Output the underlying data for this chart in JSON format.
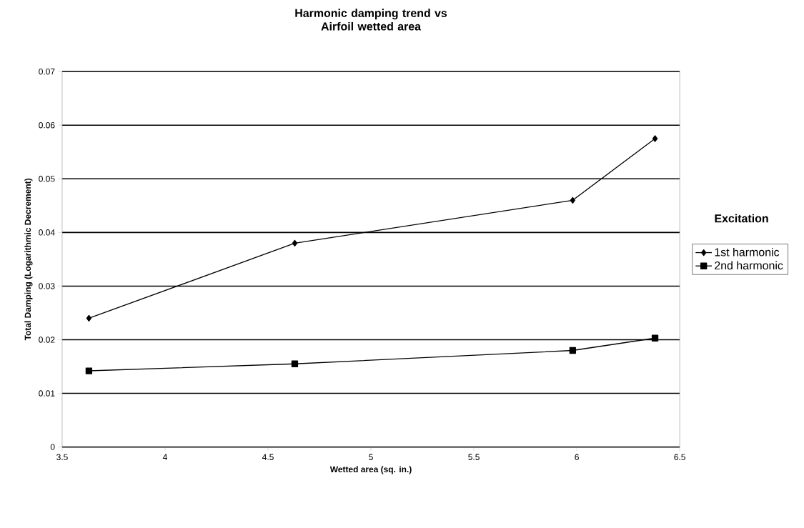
{
  "chart_data": {
    "type": "line",
    "title": "Harmonic damping trend vs\nAirfoil wetted area",
    "xlabel": "Wetted area (sq. in.)",
    "ylabel": "Total Damping (Logarithmic Decrement)",
    "legend_title": "Excitation",
    "x": [
      3.63,
      4.63,
      5.98,
      6.38
    ],
    "series": [
      {
        "name": "1st harmonic",
        "color": "#000000",
        "marker": "diamond",
        "values": [
          0.024,
          0.038,
          0.046,
          0.0575
        ]
      },
      {
        "name": "2nd harmonic",
        "color": "#000000",
        "marker": "square",
        "values": [
          0.0142,
          0.0155,
          0.018,
          0.0203
        ]
      }
    ],
    "xlim": [
      3.5,
      6.5
    ],
    "xticks": [
      3.5,
      4,
      4.5,
      5,
      5.5,
      6,
      6.5
    ],
    "ylim": [
      0,
      0.07
    ],
    "yticks": [
      0,
      0.01,
      0.02,
      0.03,
      0.04,
      0.05,
      0.06,
      0.07
    ],
    "grid": "y",
    "legend": "right",
    "line_style": "solid"
  }
}
